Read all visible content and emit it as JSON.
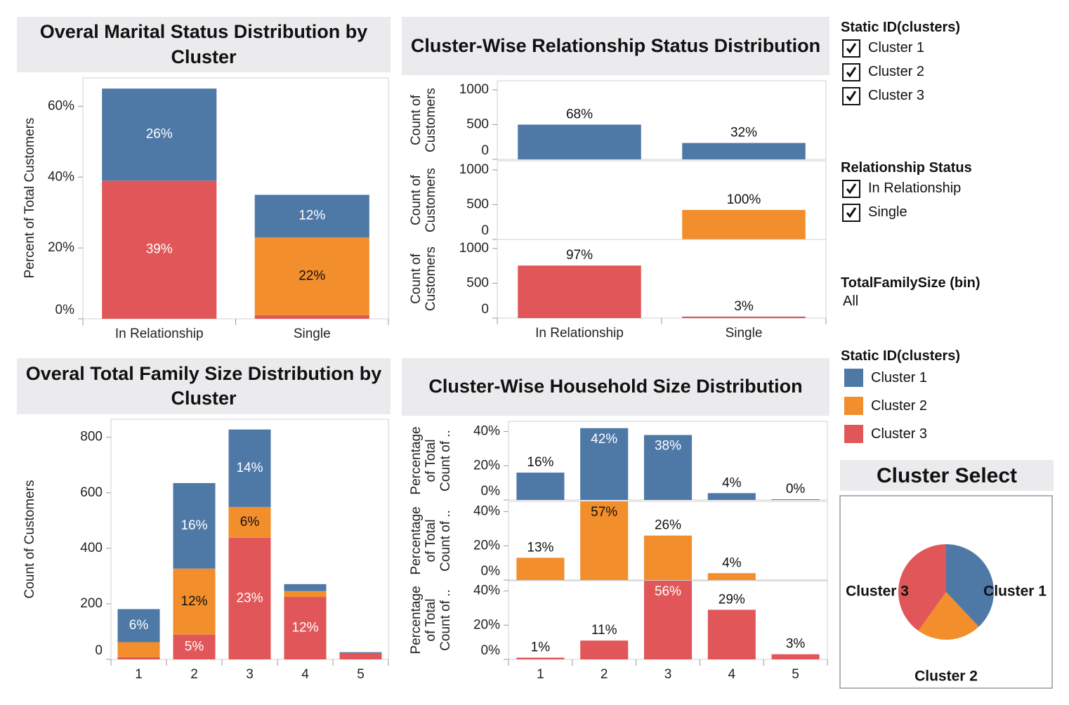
{
  "chart_data": [
    {
      "type": "stacked",
      "title": "Overal Marital Status Distribution by Cluster",
      "y_label": "Percent of Total Customers",
      "categories": [
        "In Relationship",
        "Single"
      ],
      "series": [
        {
          "name": "Cluster 1",
          "color": "#4e79a7",
          "values": [
            26,
            12
          ],
          "value_labels": [
            "26%",
            "12%"
          ]
        },
        {
          "name": "Cluster 2",
          "color": "#f28e2b",
          "values": [
            0,
            22
          ],
          "value_labels": [
            null,
            "22%"
          ]
        },
        {
          "name": "Cluster 3",
          "color": "#e15759",
          "values": [
            39,
            1
          ],
          "value_labels": [
            "39%",
            null
          ]
        }
      ],
      "ylim": [
        0,
        68
      ],
      "yticks": [
        {
          "value": 0,
          "label": "0%"
        },
        {
          "value": 20,
          "label": "20%"
        },
        {
          "value": 40,
          "label": "40%"
        },
        {
          "value": 60,
          "label": "60%"
        }
      ]
    },
    {
      "type": "faceted",
      "title": "Cluster-Wise Relationship Status Distribution",
      "y_label": "Count of Customers",
      "categories": [
        "In Relationship",
        "Single"
      ],
      "series": [
        {
          "name": "Cluster 1",
          "color": "#4e79a7",
          "values": [
            500,
            236
          ],
          "share_labels": [
            "68%",
            "32%"
          ]
        },
        {
          "name": "Cluster 2",
          "color": "#f28e2b",
          "values": [
            null,
            424
          ],
          "share_labels": [
            null,
            "100%"
          ]
        },
        {
          "name": "Cluster 3",
          "color": "#e15759",
          "values": [
            755,
            22
          ],
          "share_labels": [
            "97%",
            "3%"
          ]
        }
      ],
      "ylim": [
        0,
        1130
      ],
      "yticks": [
        0,
        500,
        1000
      ]
    },
    {
      "type": "stacked",
      "title": "Overal Total Family Size Distribution by Cluster",
      "y_label": "Count of Customers",
      "categories": [
        "1",
        "2",
        "3",
        "4",
        "5"
      ],
      "series": [
        {
          "name": "Cluster 1",
          "color": "#4e79a7",
          "values": [
            119,
            308,
            279,
            25,
            3
          ],
          "share_labels": [
            "6%",
            "16%",
            "14%",
            null,
            null
          ]
        },
        {
          "name": "Cluster 2",
          "color": "#f28e2b",
          "values": [
            54,
            238,
            111,
            21,
            null
          ],
          "share_labels": [
            null,
            "12%",
            "6%",
            null,
            null
          ]
        },
        {
          "name": "Cluster 3",
          "color": "#e15759",
          "values": [
            8,
            89,
            438,
            225,
            23
          ],
          "share_labels": [
            null,
            "5%",
            "23%",
            "12%",
            null
          ]
        }
      ],
      "ylim": [
        0,
        865
      ],
      "yticks": [
        0,
        200,
        400,
        600,
        800
      ]
    },
    {
      "type": "faceted",
      "title": "Cluster-Wise Household Size Distribution",
      "y_label": "Percentage of Total Count of ..",
      "categories": [
        "1",
        "2",
        "3",
        "4",
        "5"
      ],
      "series": [
        {
          "name": "Cluster 1",
          "color": "#4e79a7",
          "values": [
            16,
            42,
            38,
            4,
            0.4
          ],
          "value_labels": [
            "16%",
            "42%",
            "38%",
            "4%",
            "0%"
          ]
        },
        {
          "name": "Cluster 2",
          "color": "#f28e2b",
          "values": [
            13,
            57,
            26,
            4,
            null
          ],
          "value_labels": [
            "13%",
            "57%",
            "26%",
            "4%",
            null
          ]
        },
        {
          "name": "Cluster 3",
          "color": "#e15759",
          "values": [
            1,
            11,
            56,
            29,
            3
          ],
          "value_labels": [
            "1%",
            "11%",
            "56%",
            "29%",
            "3%"
          ]
        }
      ],
      "ylim": [
        0,
        46
      ],
      "yticks": [
        {
          "value": 0,
          "label": "0%"
        },
        {
          "value": 20,
          "label": "20%"
        },
        {
          "value": 40,
          "label": "40%"
        }
      ]
    },
    {
      "type": "pie",
      "title": "Cluster Select",
      "categories": [
        "Cluster 1",
        "Cluster 2",
        "Cluster 3"
      ],
      "values": [
        736,
        424,
        777
      ],
      "colors": [
        "#4e79a7",
        "#f28e2b",
        "#e15759"
      ]
    }
  ],
  "filters": [
    {
      "title": "Static ID(clusters)",
      "options": [
        "Cluster 1",
        "Cluster 2",
        "Cluster 3"
      ]
    },
    {
      "title": "Relationship Status",
      "options": [
        "In Relationship",
        "Single"
      ]
    },
    {
      "title": "TotalFamilySize (bin)",
      "value": "All"
    }
  ],
  "color_legend": {
    "title": "Static ID(clusters)"
  }
}
